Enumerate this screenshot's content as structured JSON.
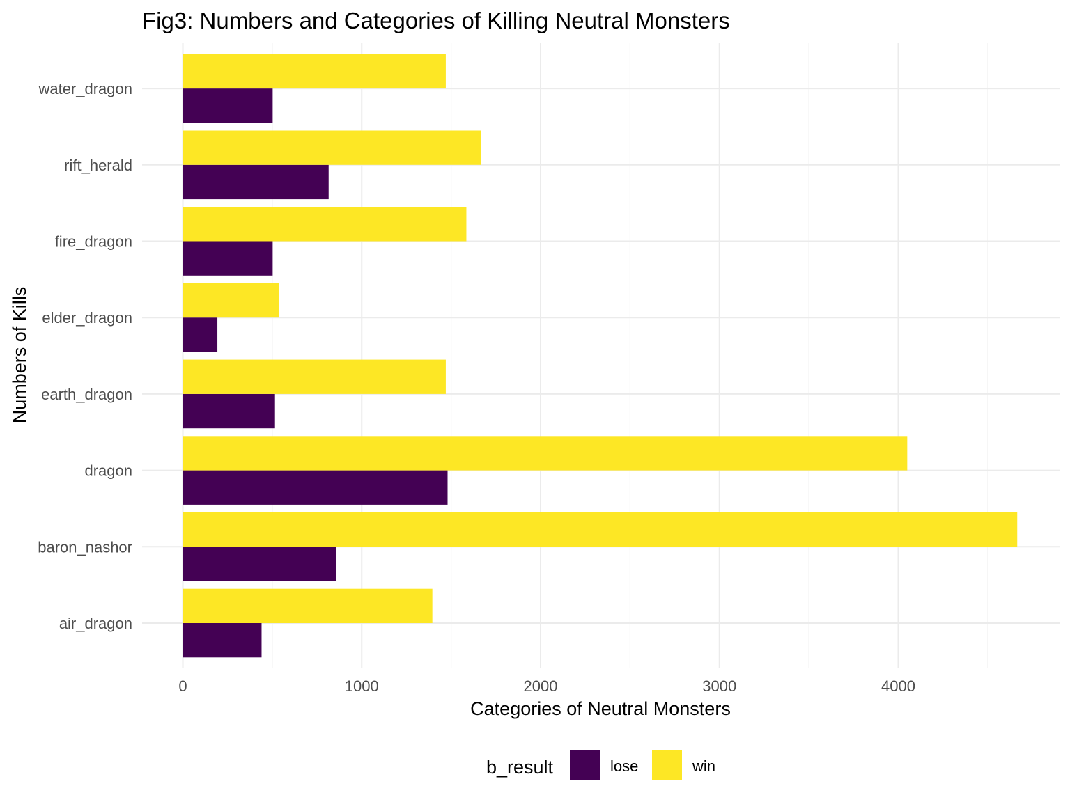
{
  "chart_data": {
    "type": "bar",
    "orientation": "horizontal",
    "title": "Fig3: Numbers and Categories of Killing Neutral Monsters",
    "xlabel": "Categories of Neutral Monsters",
    "ylabel": "Numbers of Kills",
    "xlim": [
      0,
      4900
    ],
    "x_ticks": [
      "0",
      "1000",
      "2000",
      "3000",
      "4000"
    ],
    "x_tick_values": [
      0,
      1000,
      2000,
      3000,
      4000
    ],
    "categories": [
      "air_dragon",
      "baron_nashor",
      "dragon",
      "earth_dragon",
      "elder_dragon",
      "fire_dragon",
      "rift_herald",
      "water_dragon"
    ],
    "series": [
      {
        "name": "lose",
        "color": "#440154",
        "values": [
          440,
          858,
          1480,
          515,
          193,
          502,
          815,
          502
        ]
      },
      {
        "name": "win",
        "color": "#FDE725",
        "values": [
          1395,
          4665,
          4050,
          1470,
          537,
          1585,
          1668,
          1470
        ]
      }
    ],
    "legend": {
      "title": "b_result",
      "position": "bottom"
    },
    "grid": true
  }
}
